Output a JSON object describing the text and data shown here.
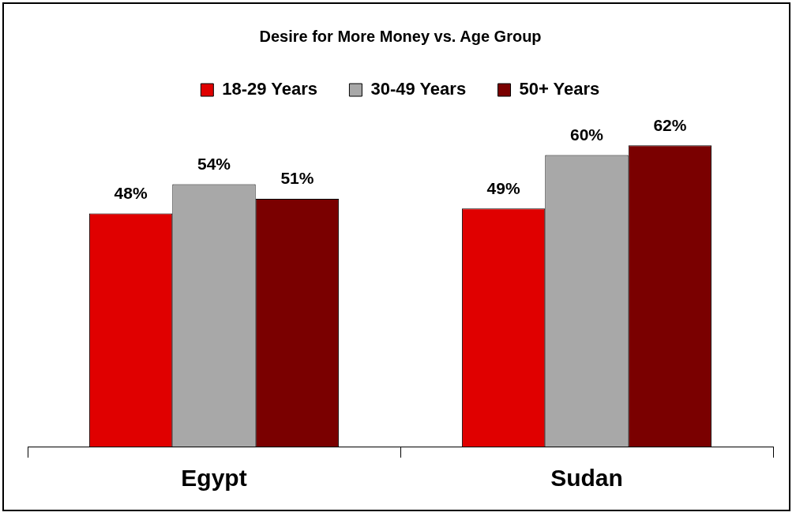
{
  "chart_data": {
    "type": "bar",
    "title": "Desire for More Money vs. Age Group",
    "categories": [
      "Egypt",
      "Sudan"
    ],
    "series": [
      {
        "name": "18-29 Years",
        "color": "#e00000",
        "values": [
          48,
          49
        ],
        "value_labels": [
          "48%",
          "49%"
        ]
      },
      {
        "name": "30-49 Years",
        "color": "#a8a8a8",
        "values": [
          54,
          60
        ],
        "value_labels": [
          "54%",
          "60%"
        ]
      },
      {
        "name": "50+ Years",
        "color": "#7a0000",
        "values": [
          51,
          62
        ],
        "value_labels": [
          "51%",
          "62%"
        ]
      }
    ],
    "legend": "top",
    "grid": false,
    "tick_labels": "x"
  }
}
